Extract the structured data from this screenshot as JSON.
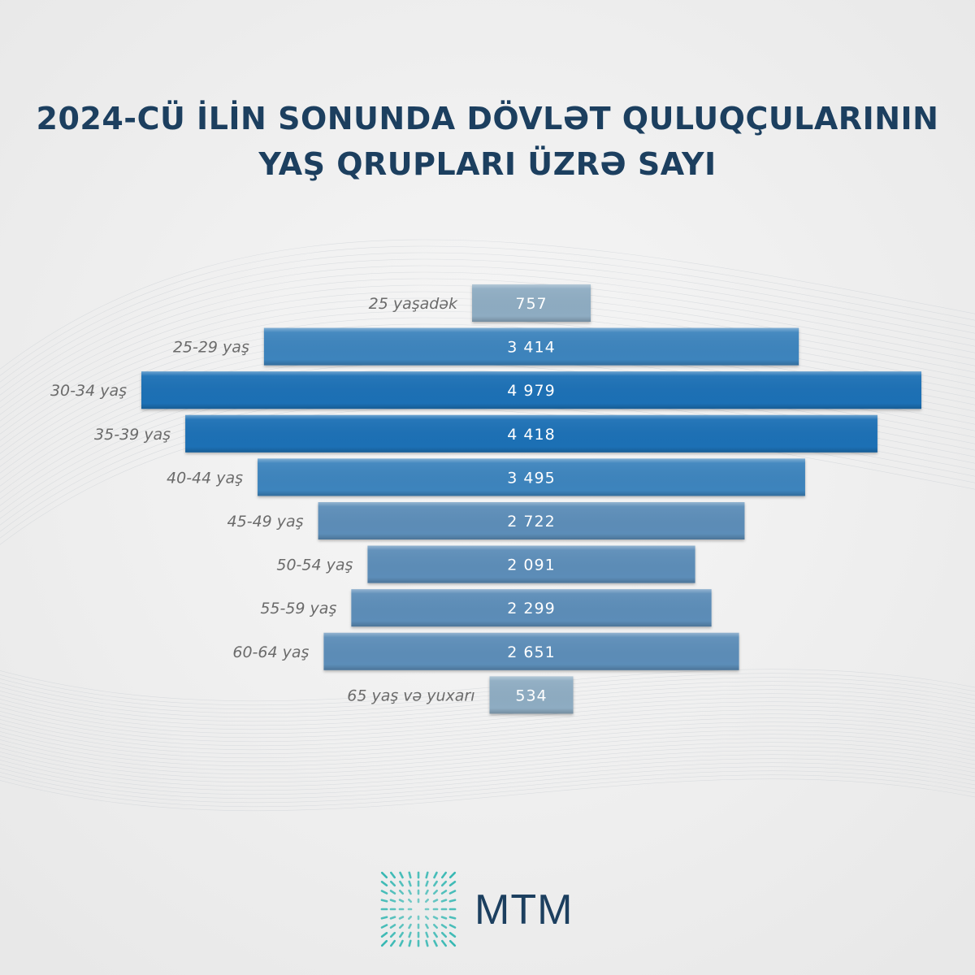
{
  "title": {
    "line1": "2024-CÜ İLİN SONUNDA DÖVLƏT QULUQÇULARININ",
    "line2": "YAŞ QRUPLARI ÜZRƏ SAYI"
  },
  "chart_data": {
    "type": "bar",
    "orientation": "horizontal-centered",
    "categories": [
      "25 yaşadək",
      "25-29 yaş",
      "30-34 yaş",
      "35-39 yaş",
      "40-44 yaş",
      "45-49 yaş",
      "50-54 yaş",
      "55-59 yaş",
      "60-64 yaş",
      "65 yaş və yuxarı"
    ],
    "values": [
      757,
      3414,
      4979,
      4418,
      3495,
      2722,
      2091,
      2299,
      2651,
      534
    ],
    "value_labels": [
      "757",
      "3 414",
      "4 979",
      "4 418",
      "3 495",
      "2 722",
      "2 091",
      "2 299",
      "2 651",
      "534"
    ],
    "colors": {
      "low": "#8eacc2",
      "mid": "#5b8db8",
      "high": "#3c84bd",
      "max": "#1a6fb5"
    }
  },
  "logo": {
    "text": "MTM",
    "color": "#1c3f5f",
    "icon": "radial-burst-icon",
    "icon_color": "#2bb5b0"
  }
}
